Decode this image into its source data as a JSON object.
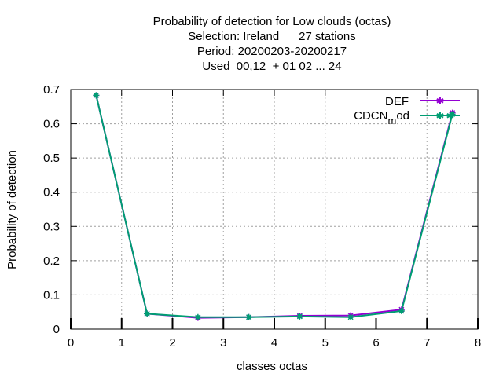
{
  "chart_data": {
    "type": "line",
    "title_lines": [
      "Probability of detection  for Low clouds (octas)",
      "Selection: Ireland      27 stations",
      "Period: 20200203-20200217",
      "Used  00,12  + 01 02 ... 24"
    ],
    "xlabel": "classes octas",
    "ylabel": "Probability of detection",
    "xlim": [
      0,
      8
    ],
    "ylim": [
      0,
      0.7
    ],
    "xticks": [
      "0",
      "1",
      "2",
      "3",
      "4",
      "5",
      "6",
      "7",
      "8"
    ],
    "yticks": [
      "0",
      "0.1",
      "0.2",
      "0.3",
      "0.4",
      "0.5",
      "0.6",
      "0.7"
    ],
    "grid": true,
    "legend_position": "top-right",
    "x": [
      0.5,
      1.5,
      2.5,
      3.5,
      4.5,
      5.5,
      6.5,
      7.5
    ],
    "series": [
      {
        "name": "DEF",
        "color": "#9400d3",
        "values": [
          0.683,
          0.045,
          0.033,
          0.035,
          0.039,
          0.04,
          0.057,
          0.632
        ]
      },
      {
        "name": "CDCN_mod",
        "color": "#009e73",
        "values": [
          0.683,
          0.045,
          0.035,
          0.035,
          0.037,
          0.035,
          0.053,
          0.628
        ]
      }
    ],
    "legend_labels": [
      {
        "main": "DEF"
      },
      {
        "main": "CDCN",
        "sub": "m",
        "rest": "od"
      }
    ]
  }
}
